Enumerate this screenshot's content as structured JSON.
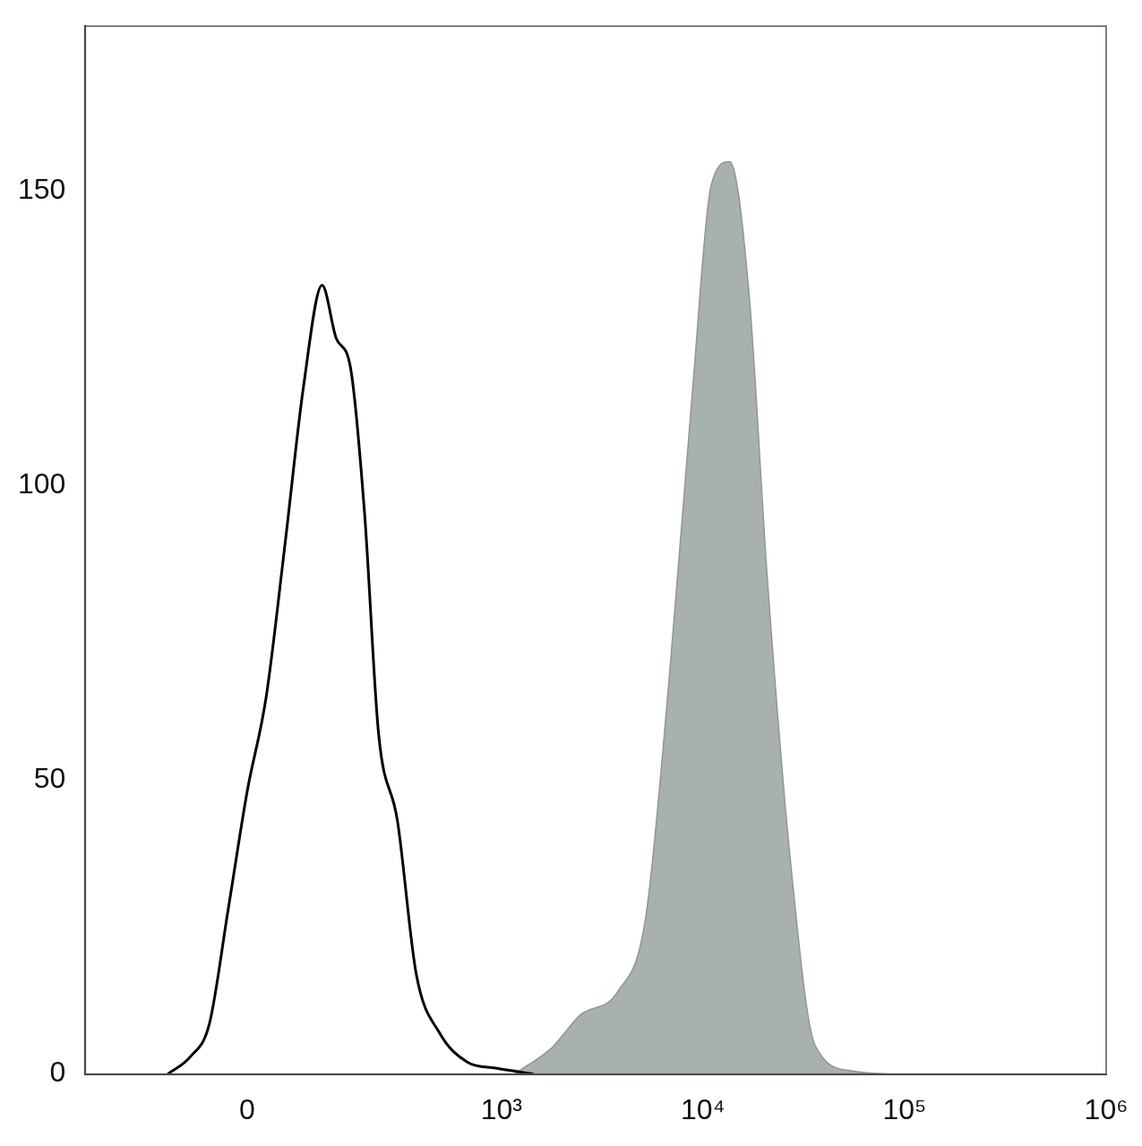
{
  "chart_data": {
    "type": "line",
    "xlim": [
      -340,
      1000000
    ],
    "xticks": [
      0,
      {
        "value": 1000,
        "label": "10³"
      },
      {
        "value": 10000,
        "label": "10⁴"
      },
      {
        "value": 100000,
        "label": "10⁵"
      },
      {
        "value": 1000000,
        "label": "10⁶"
      }
    ],
    "ylim": [
      0,
      178
    ],
    "yticks": [
      0,
      50,
      100,
      150
    ],
    "grid": false,
    "series": [
      {
        "type": "line",
        "color": "#000000",
        "x": [
          -114,
          -76,
          -49,
          -24,
          0,
          24,
          49,
          76,
          106,
          132,
          162,
          196,
          234,
          296,
          371,
          488,
          677,
          938,
          1440
        ],
        "values": [
          0,
          3,
          8.5,
          28,
          48,
          64,
          90,
          117,
          134,
          125,
          120,
          95,
          58,
          43,
          17,
          7,
          2,
          1,
          0
        ]
      },
      {
        "type": "area",
        "color": "#a9b0b0",
        "x": [
          1160,
          1785,
          2460,
          3780,
          5200,
          6820,
          8930,
          11000,
          13600,
          16900,
          20900,
          27400,
          35900,
          55100,
          84700
        ],
        "values": [
          0,
          4.5,
          10,
          14,
          26.5,
          67.5,
          117,
          151,
          155,
          133,
          84,
          35,
          5,
          0.5,
          0
        ]
      }
    ]
  }
}
